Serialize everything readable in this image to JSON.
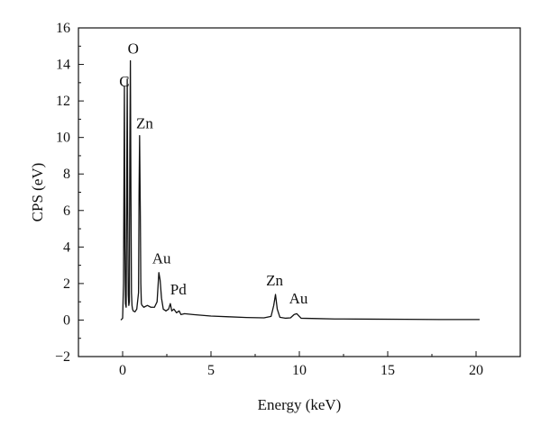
{
  "chart_data": {
    "type": "line",
    "title": "",
    "xlabel": "Energy (keV)",
    "ylabel": "CPS (eV)",
    "xlim": [
      -2.5,
      22.5
    ],
    "ylim": [
      -2,
      16
    ],
    "xticks": [
      0,
      5,
      10,
      15,
      20
    ],
    "xtick_labels": [
      "0",
      "5",
      "10",
      "15",
      "20"
    ],
    "yticks": [
      -2,
      0,
      2,
      4,
      6,
      8,
      10,
      12,
      14,
      16
    ],
    "ytick_labels": [
      "−2",
      "0",
      "2",
      "4",
      "6",
      "8",
      "10",
      "12",
      "14",
      "16"
    ],
    "grid": false,
    "legend": "none",
    "series": [
      {
        "color": "#111111",
        "x": [
          -0.1,
          0.0,
          0.05,
          0.1,
          0.13,
          0.16,
          0.2,
          0.23,
          0.26,
          0.29,
          0.32,
          0.35,
          0.38,
          0.41,
          0.44,
          0.47,
          0.5,
          0.53,
          0.56,
          0.6,
          0.7,
          0.8,
          0.9,
          0.93,
          0.96,
          1.0,
          1.03,
          1.06,
          1.1,
          1.2,
          1.4,
          1.6,
          1.8,
          1.95,
          2.05,
          2.12,
          2.2,
          2.3,
          2.45,
          2.6,
          2.7,
          2.78,
          2.9,
          3.05,
          3.2,
          3.3,
          3.5,
          4.0,
          5.0,
          6.0,
          7.0,
          8.0,
          8.4,
          8.55,
          8.65,
          8.75,
          8.9,
          9.2,
          9.5,
          9.7,
          9.85,
          10.1,
          11.0,
          12.0,
          14.0,
          16.0,
          18.0,
          20.0,
          20.2
        ],
        "y": [
          0.0,
          0.1,
          2.0,
          12.8,
          4.0,
          0.9,
          0.7,
          7.0,
          13.2,
          6.0,
          1.4,
          0.8,
          1.0,
          9.5,
          14.2,
          7.0,
          1.5,
          0.8,
          0.6,
          0.5,
          0.45,
          0.6,
          1.5,
          7.0,
          10.1,
          6.0,
          2.0,
          0.9,
          0.8,
          0.7,
          0.8,
          0.7,
          0.7,
          1.0,
          2.6,
          2.2,
          1.2,
          0.6,
          0.5,
          0.6,
          0.9,
          0.5,
          0.6,
          0.4,
          0.5,
          0.3,
          0.35,
          0.3,
          0.22,
          0.18,
          0.14,
          0.12,
          0.2,
          0.8,
          1.4,
          0.6,
          0.15,
          0.1,
          0.12,
          0.3,
          0.35,
          0.1,
          0.08,
          0.06,
          0.05,
          0.04,
          0.03,
          0.03,
          0.03
        ]
      }
    ],
    "annotations": [
      {
        "text": "C",
        "x": 0.1,
        "y": 12.8
      },
      {
        "text": "O",
        "x": 0.6,
        "y": 14.6
      },
      {
        "text": "Zn",
        "x": 1.25,
        "y": 10.5
      },
      {
        "text": "Au",
        "x": 2.2,
        "y": 3.1
      },
      {
        "text": "Pd",
        "x": 3.15,
        "y": 1.4
      },
      {
        "text": "Zn",
        "x": 8.6,
        "y": 1.9
      },
      {
        "text": "Au",
        "x": 9.95,
        "y": 0.9
      }
    ]
  }
}
